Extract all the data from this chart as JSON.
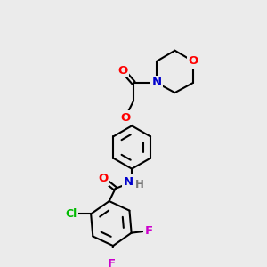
{
  "bg_color": "#ebebeb",
  "bond_color": "#000000",
  "atom_colors": {
    "O": "#ff0000",
    "N": "#0000cc",
    "Cl": "#00bb00",
    "F": "#cc00cc",
    "C": "#000000",
    "H": "#777777"
  },
  "lw": 1.5,
  "fs": 9.0
}
